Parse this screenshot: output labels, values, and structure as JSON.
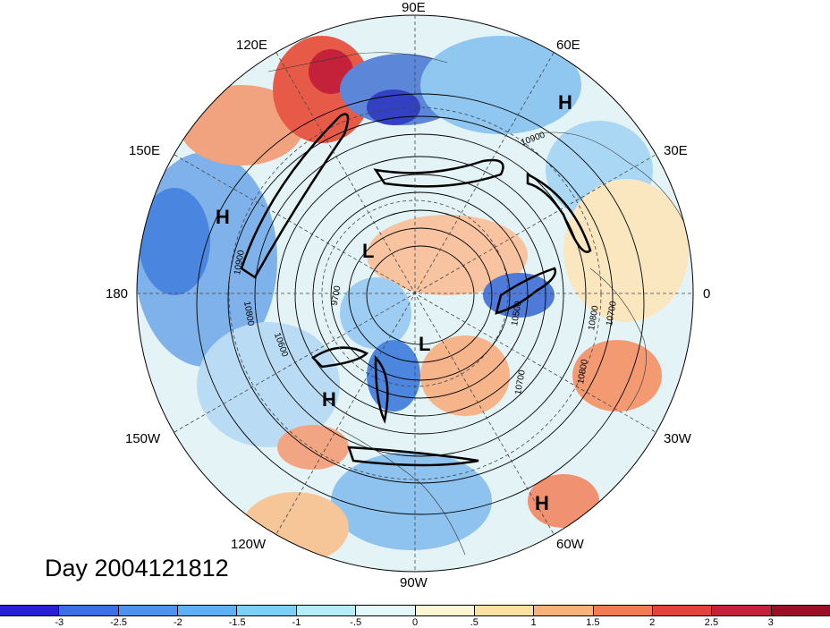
{
  "title": "Day 2004121812",
  "longitude_labels": {
    "e90": "90E",
    "e60": "60E",
    "e30": "30E",
    "zero": "0",
    "w30": "30W",
    "w60": "60W",
    "w90": "90W",
    "w120": "120W",
    "w150": "150W",
    "d180": "180",
    "e150": "150E",
    "e120": "120E"
  },
  "pressure_systems": [
    {
      "type": "H",
      "location": "western Pacific"
    },
    {
      "type": "L",
      "location": "East Siberia"
    },
    {
      "type": "H",
      "location": "North Pacific / Gulf of Alaska"
    },
    {
      "type": "L",
      "location": "Canadian Arctic"
    },
    {
      "type": "H",
      "location": "Eurasia (60E)"
    },
    {
      "type": "H",
      "location": "subtropical Atlantic"
    }
  ],
  "contour_labels": [
    "10900",
    "10800",
    "10700",
    "10600",
    "10500",
    "9700",
    "10900",
    "10800",
    "10700",
    "10800"
  ],
  "colorbar": {
    "ticks": [
      "-3",
      "-2.5",
      "-2",
      "-1.5",
      "-1",
      "-.5",
      "0",
      ".5",
      "1",
      "1.5",
      "2",
      "2.5",
      "3"
    ],
    "colors": [
      "#2a1fd4",
      "#3c6fe6",
      "#4e92ee",
      "#5fb0f2",
      "#7ccff6",
      "#b4ecfa",
      "#e2f8fb",
      "#fdf6d2",
      "#fde1a3",
      "#f8b17a",
      "#f07b55",
      "#e2443d",
      "#c4223a",
      "#9a0f26"
    ]
  }
}
